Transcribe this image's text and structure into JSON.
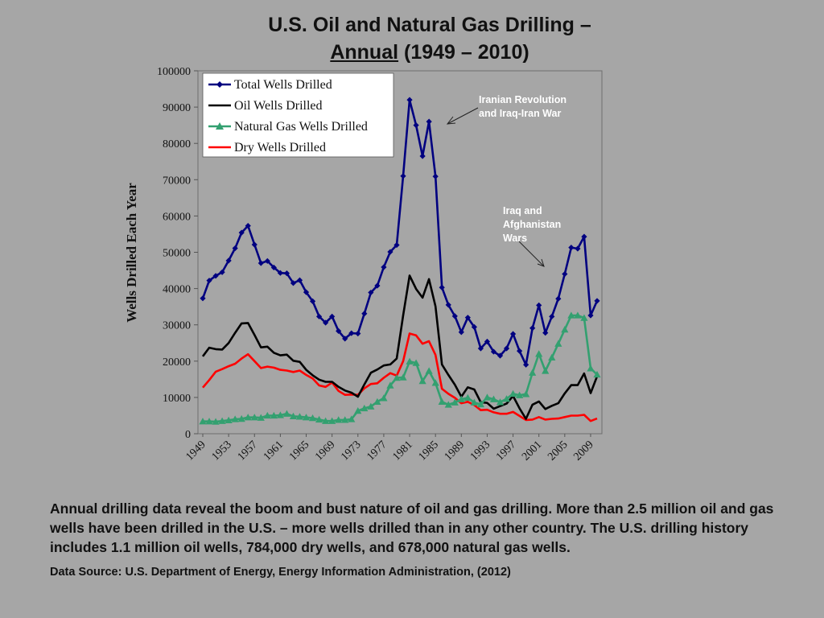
{
  "title": {
    "line1": "U.S. Oil and Natural Gas Drilling –",
    "line2_underlined": "Annual",
    "line2_rest": " (1949 – 2010)"
  },
  "caption": "Annual drilling data reveal the boom and bust nature of oil and gas drilling. More than 2.5 million oil and gas wells have been drilled in the U.S. – more wells drilled than in any other country.  The U.S. drilling history includes 1.1 million oil wells, 784,000 dry wells, and 678,000 natural gas wells.",
  "source": "Data Source: U.S. Department of Energy, Energy Information Administration, (2012)",
  "colors": {
    "background": "#a6a6a6",
    "total": "#000080",
    "oil": "#000000",
    "gas": "#33a070",
    "dry": "#ff0000"
  },
  "chart_data": {
    "type": "line",
    "title": "U.S. Oil and Natural Gas Drilling – Annual (1949 – 2010)",
    "xlabel": "",
    "ylabel": "Wells Drilled Each Year",
    "ylim": [
      0,
      100000
    ],
    "yticks": [
      0,
      10000,
      20000,
      30000,
      40000,
      50000,
      60000,
      70000,
      80000,
      90000,
      100000
    ],
    "xlim": [
      1949,
      2010
    ],
    "xtick_labels": [
      "1949",
      "1953",
      "1957",
      "1961",
      "1965",
      "1969",
      "1973",
      "1977",
      "1981",
      "1985",
      "1989",
      "1993",
      "1997",
      "2001",
      "2005",
      "2009"
    ],
    "grid": false,
    "legend_position": "top-left",
    "x": [
      1949,
      1950,
      1951,
      1952,
      1953,
      1954,
      1955,
      1956,
      1957,
      1958,
      1959,
      1960,
      1961,
      1962,
      1963,
      1964,
      1965,
      1966,
      1967,
      1968,
      1969,
      1970,
      1971,
      1972,
      1973,
      1974,
      1975,
      1976,
      1977,
      1978,
      1979,
      1980,
      1981,
      1982,
      1983,
      1984,
      1985,
      1986,
      1987,
      1988,
      1989,
      1990,
      1991,
      1992,
      1993,
      1994,
      1995,
      1996,
      1997,
      1998,
      1999,
      2000,
      2001,
      2002,
      2003,
      2004,
      2005,
      2006,
      2007,
      2008,
      2009,
      2010
    ],
    "series": [
      {
        "name": "Total Wells Drilled",
        "marker": "diamond",
        "values": [
          37300,
          42200,
          43500,
          44500,
          47700,
          51100,
          55400,
          57300,
          52100,
          47000,
          47600,
          45800,
          44300,
          44200,
          41500,
          42300,
          39000,
          36500,
          32300,
          30600,
          32300,
          28300,
          26200,
          27700,
          27600,
          33100,
          38900,
          40800,
          45900,
          50100,
          52000,
          71000,
          92000,
          85000,
          76500,
          86000,
          70900,
          40300,
          35500,
          32400,
          28000,
          32000,
          29400,
          23500,
          25400,
          22600,
          21500,
          23500,
          27500,
          22800,
          19000,
          29100,
          35400,
          27800,
          32300,
          37200,
          44000,
          51300,
          51000,
          54300,
          32600,
          36600
        ]
      },
      {
        "name": "Oil Wells Drilled",
        "marker": "none",
        "values": [
          21300,
          23700,
          23300,
          23200,
          25000,
          27800,
          30400,
          30500,
          27200,
          23800,
          24000,
          22300,
          21600,
          21800,
          20100,
          19800,
          17600,
          16100,
          14900,
          14300,
          14300,
          12900,
          11900,
          11300,
          10200,
          13600,
          16800,
          17700,
          18800,
          19100,
          20700,
          32600,
          43600,
          39900,
          37500,
          42600,
          35100,
          19100,
          16200,
          13500,
          10200,
          12800,
          12200,
          8700,
          8500,
          6900,
          7600,
          8300,
          10400,
          7000,
          4100,
          8000,
          8900,
          6800,
          7700,
          8400,
          11100,
          13400,
          13400,
          16600,
          11200,
          15800
        ]
      },
      {
        "name": "Natural Gas Wells Drilled",
        "marker": "triangle",
        "values": [
          3400,
          3400,
          3300,
          3500,
          3700,
          4000,
          4100,
          4500,
          4500,
          4400,
          5000,
          5000,
          5100,
          5500,
          4800,
          4700,
          4500,
          4300,
          3900,
          3500,
          3500,
          3800,
          3800,
          4000,
          6300,
          7000,
          7500,
          8800,
          9800,
          13300,
          15400,
          15500,
          19900,
          19500,
          14500,
          17300,
          14000,
          8800,
          8000,
          8600,
          9500,
          9900,
          8600,
          8100,
          10000,
          9500,
          8700,
          9600,
          11000,
          10600,
          10900,
          16800,
          22000,
          17300,
          21000,
          24800,
          28700,
          32600,
          32600,
          31900,
          18000,
          16300
        ]
      },
      {
        "name": "Dry Wells Drilled",
        "marker": "none",
        "values": [
          12700,
          14800,
          17100,
          17800,
          18600,
          19300,
          20700,
          21900,
          20000,
          18100,
          18500,
          18200,
          17600,
          17400,
          17000,
          17400,
          16200,
          15200,
          13300,
          12900,
          14100,
          11800,
          10700,
          10800,
          10700,
          12500,
          13700,
          13900,
          15400,
          16700,
          16000,
          20000,
          27600,
          27100,
          24800,
          25500,
          21700,
          12400,
          11000,
          9900,
          8400,
          8800,
          7900,
          6500,
          6600,
          5900,
          5500,
          5500,
          6000,
          4900,
          3800,
          3900,
          4600,
          3900,
          4100,
          4200,
          4600,
          5000,
          5000,
          5200,
          3500,
          4200
        ]
      }
    ],
    "annotations": [
      {
        "text_lines": [
          "Iranian Revolution",
          "and Iraq-Iran War"
        ],
        "points_to_year": 1986
      },
      {
        "text_lines": [
          "Iraq and",
          "Afghanistan",
          "Wars"
        ],
        "points_to_year": 2003
      }
    ]
  }
}
